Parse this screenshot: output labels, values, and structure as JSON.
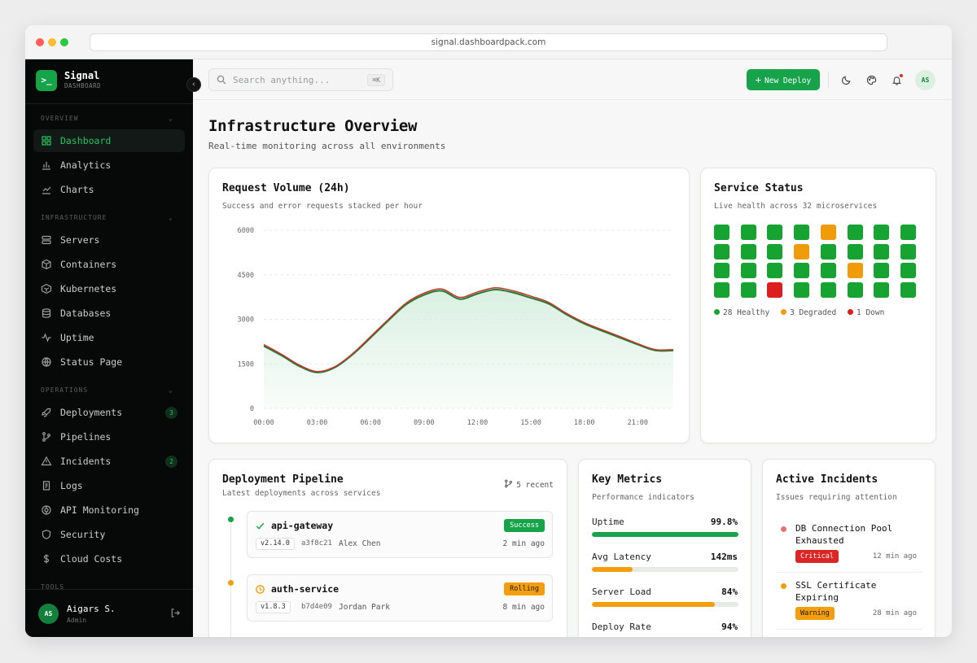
{
  "browser": {
    "url": "signal.dashboardpack.com"
  },
  "brand": {
    "logo": ">_",
    "name": "Signal",
    "sub": "DASHBOARD"
  },
  "sidebar": {
    "sections": [
      {
        "label": "OVERVIEW",
        "items": [
          {
            "label": "Dashboard",
            "icon": "dashboard-icon",
            "active": true
          },
          {
            "label": "Analytics",
            "icon": "analytics-icon"
          },
          {
            "label": "Charts",
            "icon": "charts-icon"
          }
        ]
      },
      {
        "label": "INFRASTRUCTURE",
        "items": [
          {
            "label": "Servers",
            "icon": "servers-icon"
          },
          {
            "label": "Containers",
            "icon": "containers-icon"
          },
          {
            "label": "Kubernetes",
            "icon": "kubernetes-icon"
          },
          {
            "label": "Databases",
            "icon": "databases-icon"
          },
          {
            "label": "Uptime",
            "icon": "uptime-icon"
          },
          {
            "label": "Status Page",
            "icon": "status-page-icon"
          }
        ]
      },
      {
        "label": "OPERATIONS",
        "items": [
          {
            "label": "Deployments",
            "icon": "deployments-icon",
            "badge": "3"
          },
          {
            "label": "Pipelines",
            "icon": "pipelines-icon"
          },
          {
            "label": "Incidents",
            "icon": "incidents-icon",
            "badge": "2"
          },
          {
            "label": "Logs",
            "icon": "logs-icon"
          },
          {
            "label": "API Monitoring",
            "icon": "api-monitoring-icon"
          },
          {
            "label": "Security",
            "icon": "security-icon"
          },
          {
            "label": "Cloud Costs",
            "icon": "cloud-costs-icon"
          }
        ]
      },
      {
        "label": "TOOLS",
        "items": []
      }
    ]
  },
  "user": {
    "initials": "AS",
    "name": "Aigars S.",
    "role": "Admin"
  },
  "topbar": {
    "search_placeholder": "Search anything...",
    "shortcut": "⌘K",
    "new_deploy_label": "New Deploy",
    "avatar_initials": "AS"
  },
  "page": {
    "title": "Infrastructure Overview",
    "subtitle": "Real-time monitoring across all environments"
  },
  "request_volume": {
    "title": "Request Volume (24h)",
    "subtitle": "Success and error requests stacked per hour"
  },
  "chart_data": {
    "type": "area",
    "x": [
      "00:00",
      "01:00",
      "02:00",
      "03:00",
      "04:00",
      "05:00",
      "06:00",
      "07:00",
      "08:00",
      "09:00",
      "10:00",
      "11:00",
      "12:00",
      "13:00",
      "14:00",
      "15:00",
      "16:00",
      "17:00",
      "18:00",
      "19:00",
      "20:00",
      "21:00",
      "22:00",
      "23:00"
    ],
    "xticks": [
      "00:00",
      "03:00",
      "06:00",
      "09:00",
      "12:00",
      "15:00",
      "18:00",
      "21:00"
    ],
    "yticks": [
      "0",
      "1500",
      "3000",
      "4500",
      "6000"
    ],
    "ylim": [
      0,
      6000
    ],
    "series": [
      {
        "values": [
          2100,
          1780,
          1420,
          1210,
          1380,
          1820,
          2380,
          2960,
          3500,
          3820,
          3960,
          3680,
          3860,
          4000,
          3900,
          3720,
          3520,
          3160,
          2850,
          2610,
          2380,
          2150,
          1950,
          1950
        ]
      },
      {
        "values": [
          2150,
          1820,
          1460,
          1240,
          1410,
          1850,
          2420,
          3000,
          3550,
          3880,
          4020,
          3740,
          3920,
          4060,
          3960,
          3780,
          3570,
          3200,
          2890,
          2650,
          2420,
          2180,
          1980,
          1980
        ]
      }
    ],
    "colors": {
      "line_success": "#2a7a34",
      "line_error": "#c0392b",
      "fill": "#d7efe0"
    }
  },
  "service_status": {
    "title": "Service Status",
    "subtitle": "Live health across 32 microservices",
    "grid": [
      "healthy",
      "healthy",
      "healthy",
      "healthy",
      "degraded",
      "healthy",
      "healthy",
      "healthy",
      "healthy",
      "healthy",
      "healthy",
      "degraded",
      "healthy",
      "healthy",
      "healthy",
      "healthy",
      "healthy",
      "healthy",
      "healthy",
      "healthy",
      "healthy",
      "degraded",
      "healthy",
      "healthy",
      "healthy",
      "healthy",
      "down",
      "healthy",
      "healthy",
      "healthy",
      "healthy",
      "healthy"
    ],
    "colors": {
      "healthy": "#16a332",
      "degraded": "#f09b0a",
      "down": "#dc1e1e"
    },
    "legend": {
      "healthy": "28 Healthy",
      "degraded": "3 Degraded",
      "down": "1 Down"
    }
  },
  "pipeline": {
    "title": "Deployment Pipeline",
    "subtitle": "Latest deployments across services",
    "recent_label": "5 recent",
    "items": [
      {
        "name": "api-gateway",
        "status": "Success",
        "version": "v2.14.0",
        "hash": "a3f8c21",
        "author": "Alex Chen",
        "time": "2 min ago",
        "color": "#16a34a",
        "status_bg": "#16a34a",
        "status_fg": "#ffffff",
        "icon": "check-icon"
      },
      {
        "name": "auth-service",
        "status": "Rolling",
        "version": "v1.8.3",
        "hash": "b7d4e09",
        "author": "Jordan Park",
        "time": "8 min ago",
        "color": "#f59e0b",
        "status_bg": "#f59e0b",
        "status_fg": "#1a1a1a",
        "icon": "clock-icon"
      }
    ]
  },
  "metrics": {
    "title": "Key Metrics",
    "subtitle": "Performance indicators",
    "items": [
      {
        "label": "Uptime",
        "value": "99.8%",
        "fill": 0.998,
        "color": "#16a34a"
      },
      {
        "label": "Avg Latency",
        "value": "142ms",
        "fill": 0.28,
        "color": "#f59e0b"
      },
      {
        "label": "Server Load",
        "value": "84%",
        "fill": 0.84,
        "color": "#f59e0b"
      },
      {
        "label": "Deploy Rate",
        "value": "94%",
        "fill": 0.94,
        "color": "#16a34a"
      }
    ]
  },
  "incidents": {
    "title": "Active Incidents",
    "subtitle": "Issues requiring attention",
    "items": [
      {
        "title": "DB Connection Pool Exhausted",
        "badge": "Critical",
        "time": "12 min ago",
        "dot": "#e57373",
        "badge_bg": "#dc2626",
        "badge_fg": "#ffffff"
      },
      {
        "title": "SSL Certificate Expiring",
        "badge": "Warning",
        "time": "28 min ago",
        "dot": "#f59e0b",
        "badge_bg": "#f59e0b",
        "badge_fg": "#1a1a1a"
      }
    ]
  }
}
